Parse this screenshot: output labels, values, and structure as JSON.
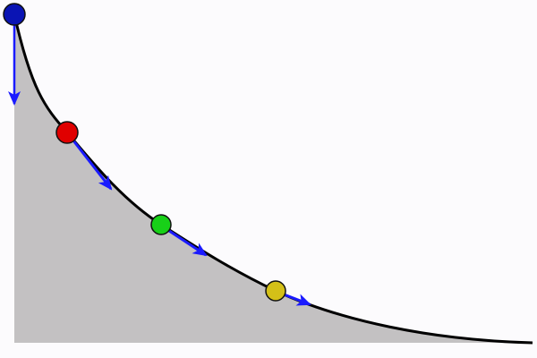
{
  "colors": {
    "background": "#fcfbfd",
    "area": "#c3c1c2",
    "curve": "#000000",
    "arrow": "#1a1aff",
    "balls": [
      "#0a14b4",
      "#e00000",
      "#18d018",
      "#d4c018"
    ]
  },
  "balls": [
    {
      "name": "blue-ball",
      "color_index": 0
    },
    {
      "name": "red-ball",
      "color_index": 1
    },
    {
      "name": "green-ball",
      "color_index": 2
    },
    {
      "name": "yellow-ball",
      "color_index": 3
    }
  ]
}
